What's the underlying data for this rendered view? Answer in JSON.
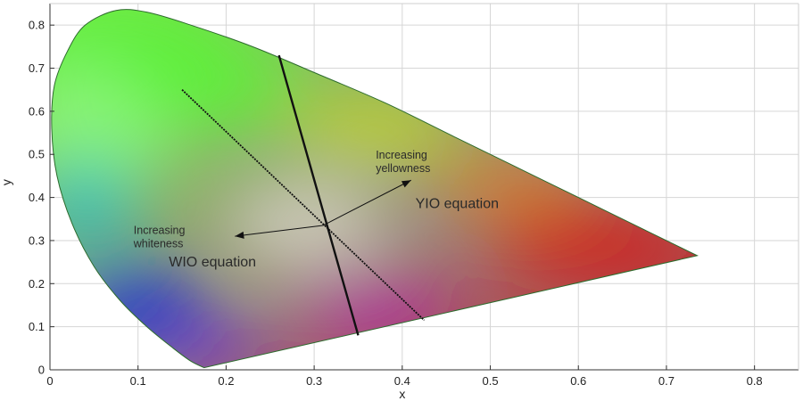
{
  "chart_data": {
    "type": "scatter",
    "title": "",
    "xlabel": "x",
    "ylabel": "y",
    "xlim": [
      0,
      0.85
    ],
    "ylim": [
      0,
      0.85
    ],
    "x_ticks": [
      0,
      0.1,
      0.2,
      0.3,
      0.4,
      0.5,
      0.6,
      0.7,
      0.8
    ],
    "y_ticks": [
      0,
      0.1,
      0.2,
      0.3,
      0.4,
      0.5,
      0.6,
      0.7,
      0.8
    ],
    "x_tick_labels": [
      "0",
      "0.1",
      "0.2",
      "0.3",
      "0.4",
      "0.5",
      "0.6",
      "0.7",
      "0.8"
    ],
    "y_tick_labels": [
      "0",
      "0.1",
      "0.2",
      "0.3",
      "0.4",
      "0.5",
      "0.6",
      "0.7",
      "0.8"
    ],
    "grid": true,
    "gamut_boundary": {
      "x": [
        0.175,
        0.16,
        0.14,
        0.11,
        0.08,
        0.05,
        0.025,
        0.008,
        0.002,
        0.005,
        0.02,
        0.04,
        0.075,
        0.11,
        0.16,
        0.23,
        0.3,
        0.38,
        0.46,
        0.55,
        0.64,
        0.735
      ],
      "y": [
        0.005,
        0.02,
        0.05,
        0.1,
        0.16,
        0.24,
        0.34,
        0.45,
        0.56,
        0.66,
        0.74,
        0.8,
        0.834,
        0.83,
        0.8,
        0.75,
        0.69,
        0.62,
        0.54,
        0.45,
        0.36,
        0.265
      ]
    },
    "purple_line": {
      "x": [
        0.175,
        0.735
      ],
      "y": [
        0.005,
        0.265
      ]
    },
    "lines": [
      {
        "style": "solid",
        "x": [
          0.26,
          0.35
        ],
        "y": [
          0.73,
          0.08
        ]
      },
      {
        "style": "dashed",
        "x": [
          0.15,
          0.425
        ],
        "y": [
          0.65,
          0.115
        ]
      }
    ],
    "arrows": [
      {
        "from": [
          0.31,
          0.335
        ],
        "to": [
          0.41,
          0.44
        ]
      },
      {
        "from": [
          0.31,
          0.335
        ],
        "to": [
          0.21,
          0.31
        ]
      }
    ],
    "annotations": [
      {
        "lines": [
          "Increasing",
          "yellowness"
        ],
        "x": 0.37,
        "y": 0.49,
        "size": "small"
      },
      {
        "lines": [
          "YIO equation"
        ],
        "x": 0.415,
        "y": 0.375,
        "size": "big"
      },
      {
        "lines": [
          "Increasing",
          "whiteness"
        ],
        "x": 0.095,
        "y": 0.315,
        "size": "small"
      },
      {
        "lines": [
          "WIO equation"
        ],
        "x": 0.135,
        "y": 0.24,
        "size": "big"
      }
    ],
    "colors": {
      "green": "#5ef03a",
      "light_green": "#8af57a",
      "cyan": "#2fb8c0",
      "blue": "#1833d6",
      "violet": "#6d12e0",
      "magenta": "#b314b0",
      "red": "#d81414",
      "orange": "#e87a18",
      "yellow": "#c7d62e",
      "white": "#d6d2c6",
      "grid": "#d6d6d6",
      "axis": "#333333"
    }
  }
}
